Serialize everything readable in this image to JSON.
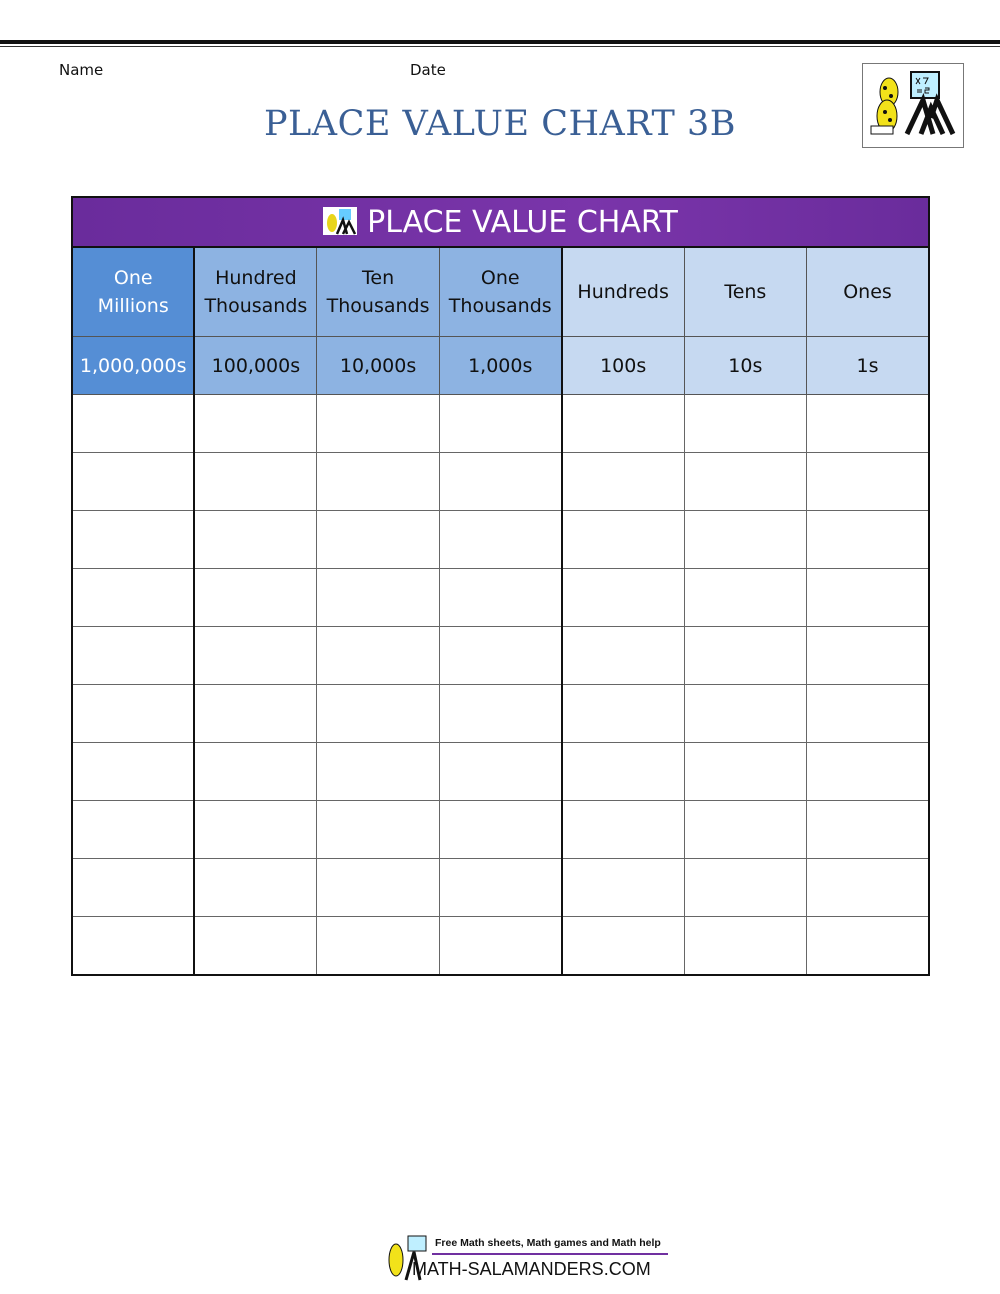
{
  "header": {
    "name_label": "Name",
    "date_label": "Date",
    "title": "PLACE VALUE CHART 3B"
  },
  "chart": {
    "title": "PLACE VALUE CHART",
    "columns": [
      {
        "name": "One Millions",
        "line1": "One",
        "line2": "Millions",
        "value": "1,000,000s"
      },
      {
        "name": "Hundred Thousands",
        "line1": "Hundred",
        "line2": "Thousands",
        "value": "100,000s"
      },
      {
        "name": "Ten Thousands",
        "line1": "Ten",
        "line2": "Thousands",
        "value": "10,000s"
      },
      {
        "name": "One Thousands",
        "line1": "One",
        "line2": "Thousands",
        "value": "1,000s"
      },
      {
        "name": "Hundreds",
        "line1": "Hundreds",
        "line2": "",
        "value": "100s"
      },
      {
        "name": "Tens",
        "line1": "Tens",
        "line2": "",
        "value": "10s"
      },
      {
        "name": "Ones",
        "line1": "Ones",
        "line2": "",
        "value": "1s"
      }
    ],
    "blank_rows": 10,
    "colors": {
      "title": "#7030a0",
      "millions": "#558ed5",
      "thousands": "#8db3e2",
      "units": "#c6d9f1"
    }
  },
  "footer": {
    "tagline": "Free Math sheets, Math games and Math help",
    "site": "MATH-SALAMANDERS.COM"
  }
}
